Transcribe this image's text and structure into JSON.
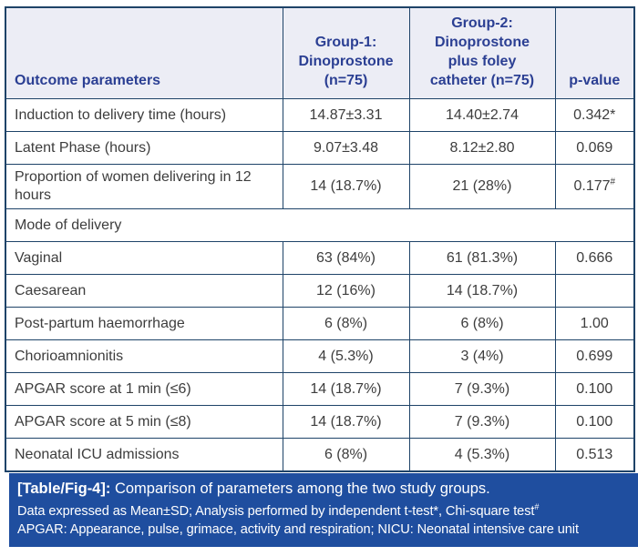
{
  "colors": {
    "border": "#1e4368",
    "header_bg": "#ecedf5",
    "header_text": "#2b3f93",
    "body_text": "#3d3d3d",
    "band_bg": "#1f4e9f",
    "band_text": "#ffffff"
  },
  "table": {
    "headers": [
      "Outcome parameters",
      "Group-1:\nDinoprostone\n(n=75)",
      "Group-2:\nDinoprostone\nplus foley\ncatheter (n=75)",
      "p-value"
    ],
    "rows": [
      {
        "type": "data",
        "cells": [
          "Induction to delivery time (hours)",
          "14.87±3.31",
          "14.40±2.74",
          "0.342*"
        ]
      },
      {
        "type": "data",
        "cells": [
          "Latent Phase (hours)",
          "9.07±3.48",
          "8.12±2.80",
          "0.069"
        ]
      },
      {
        "type": "data",
        "cells": [
          "Proportion of women delivering in 12 hours",
          "14 (18.7%)",
          "21 (28%)",
          "0.177#"
        ]
      },
      {
        "type": "section",
        "label": "Mode of delivery"
      },
      {
        "type": "data",
        "cells": [
          "Vaginal",
          "63 (84%)",
          "61 (81.3%)",
          "0.666"
        ]
      },
      {
        "type": "data",
        "cells": [
          "Caesarean",
          "12 (16%)",
          "14 (18.7%)",
          ""
        ]
      },
      {
        "type": "data",
        "cells": [
          "Post-partum haemorrhage",
          "6 (8%)",
          "6 (8%)",
          "1.00"
        ]
      },
      {
        "type": "data",
        "cells": [
          "Chorioamnionitis",
          "4 (5.3%)",
          "3 (4%)",
          "0.699"
        ]
      },
      {
        "type": "data",
        "cells": [
          "APGAR score at 1 min (≤6)",
          "14 (18.7%)",
          "7 (9.3%)",
          "0.100"
        ]
      },
      {
        "type": "data",
        "cells": [
          "APGAR score at 5 min (≤8)",
          "14 (18.7%)",
          "7 (9.3%)",
          "0.100"
        ]
      },
      {
        "type": "data",
        "cells": [
          "Neonatal ICU admissions",
          "6 (8%)",
          "4 (5.3%)",
          "0.513"
        ]
      }
    ]
  },
  "caption": {
    "label": "[Table/Fig-4]:",
    "text": "Comparison of parameters among the two study groups."
  },
  "footnotes": [
    "Data expressed as Mean±SD; Analysis performed by independent t-test*, Chi-square test#",
    "APGAR: Appearance, pulse, grimace, activity and respiration; NICU: Neonatal intensive care unit"
  ]
}
